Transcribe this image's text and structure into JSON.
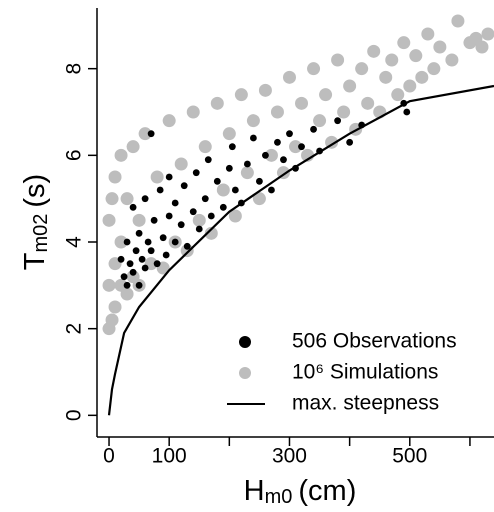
{
  "chart_data": {
    "type": "scatter",
    "xlabel": "H",
    "xlabel_sub": "m0",
    "xlabel_unit": "(cm)",
    "ylabel": "T",
    "ylabel_sub": "m02",
    "ylabel_unit": "(s)",
    "xlim": [
      -20,
      640
    ],
    "ylim": [
      -0.5,
      9.4
    ],
    "xticks": [
      0,
      100,
      300,
      500
    ],
    "xticks_unlabeled": [
      200,
      400,
      600
    ],
    "yticks": [
      0,
      2,
      4,
      6,
      8
    ],
    "legend": "bottom-right",
    "series": [
      {
        "name": "10⁶ Simulations",
        "color": "#bdbdbd",
        "mark": "point",
        "x": [
          0,
          0,
          0,
          5,
          5,
          10,
          10,
          10,
          20,
          20,
          20,
          30,
          30,
          40,
          40,
          50,
          50,
          60,
          70,
          80,
          90,
          100,
          110,
          120,
          130,
          140,
          150,
          160,
          170,
          180,
          190,
          200,
          210,
          220,
          230,
          240,
          250,
          260,
          270,
          280,
          290,
          300,
          310,
          320,
          330,
          340,
          350,
          360,
          370,
          380,
          390,
          400,
          410,
          420,
          430,
          440,
          450,
          460,
          470,
          480,
          490,
          500,
          510,
          520,
          530,
          540,
          550,
          570,
          580,
          600,
          610,
          620,
          630
        ],
        "values": [
          2.0,
          3.0,
          4.5,
          2.2,
          5.0,
          2.5,
          3.5,
          5.5,
          3.0,
          4.0,
          6.0,
          2.8,
          5.0,
          3.2,
          6.2,
          3.0,
          4.5,
          6.5,
          3.5,
          5.5,
          3.4,
          6.8,
          4.0,
          5.8,
          3.8,
          7.0,
          4.5,
          6.2,
          4.2,
          7.2,
          5.2,
          6.5,
          4.6,
          7.4,
          5.6,
          6.8,
          5.0,
          7.5,
          6.0,
          7.0,
          5.6,
          7.8,
          6.2,
          7.2,
          6.0,
          8.0,
          6.8,
          7.4,
          6.3,
          8.2,
          7.0,
          7.6,
          6.6,
          8.0,
          7.2,
          8.4,
          7.0,
          7.8,
          8.2,
          7.4,
          8.6,
          7.6,
          8.3,
          7.8,
          8.8,
          8.0,
          8.5,
          8.2,
          9.1,
          8.6,
          8.7,
          8.5,
          8.8
        ]
      },
      {
        "name": "506 Observations",
        "color": "#000000",
        "mark": "point",
        "x": [
          20,
          25,
          30,
          30,
          35,
          40,
          40,
          45,
          50,
          50,
          55,
          60,
          60,
          65,
          70,
          70,
          75,
          80,
          85,
          90,
          95,
          100,
          100,
          110,
          110,
          120,
          125,
          130,
          140,
          145,
          150,
          160,
          165,
          170,
          180,
          190,
          200,
          205,
          210,
          220,
          230,
          240,
          250,
          260,
          270,
          280,
          290,
          300,
          310,
          320,
          340,
          350,
          380,
          400,
          420,
          490,
          495
        ],
        "values": [
          3.6,
          3.2,
          4.0,
          3.0,
          3.5,
          4.8,
          3.3,
          3.8,
          4.2,
          3.0,
          3.6,
          5.0,
          3.4,
          4.0,
          6.5,
          3.8,
          4.5,
          3.5,
          5.2,
          4.1,
          3.7,
          4.6,
          5.5,
          4.0,
          4.9,
          4.4,
          5.3,
          3.9,
          4.7,
          5.6,
          4.3,
          5.0,
          5.9,
          4.6,
          5.4,
          4.8,
          5.7,
          6.2,
          5.2,
          4.9,
          5.8,
          6.4,
          5.4,
          6.0,
          5.2,
          6.3,
          5.9,
          6.5,
          5.7,
          6.2,
          6.6,
          6.1,
          6.8,
          6.3,
          6.7,
          7.2,
          7.0
        ]
      },
      {
        "name": "max. steepness",
        "color": "#000000",
        "mark": "line",
        "x": [
          0,
          5,
          10,
          25,
          50,
          100,
          200,
          300,
          400,
          500,
          640
        ],
        "values": [
          0,
          0.6,
          0.95,
          1.9,
          2.5,
          3.35,
          4.7,
          5.65,
          6.5,
          7.25,
          7.6
        ]
      }
    ]
  }
}
